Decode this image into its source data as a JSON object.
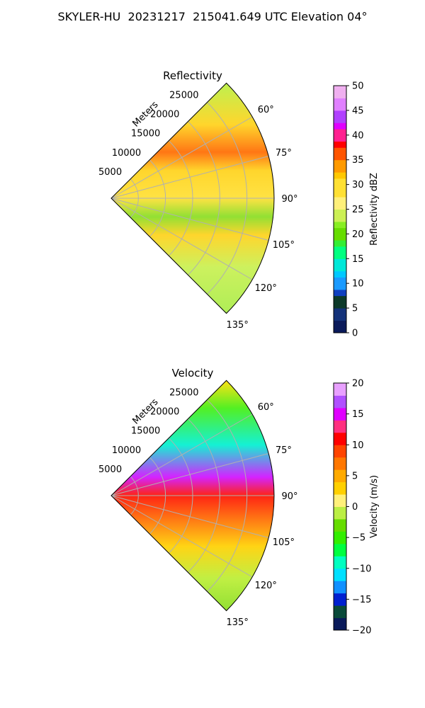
{
  "suptitle": "SKYLER-HU  20231217  215041.649 UTC Elevation 04°",
  "chart_data": [
    {
      "type": "ppi-sector",
      "title": "Reflectivity",
      "range_label": "Meters",
      "range_ticks": [
        "5000",
        "10000",
        "15000",
        "20000",
        "25000"
      ],
      "range_values": [
        5000,
        10000,
        15000,
        20000,
        25000
      ],
      "max_range": 30000,
      "azimuth_ticks": [
        "60°",
        "75°",
        "90°",
        "105°",
        "120°",
        "135°"
      ],
      "azimuth_values": [
        60,
        75,
        90,
        105,
        120,
        135
      ],
      "azimuth_range": [
        45,
        135
      ],
      "colorbar": {
        "label": "Reflectivity dBZ",
        "vmin": 0,
        "vmax": 50,
        "ticks": [
          "0",
          "5",
          "10",
          "15",
          "20",
          "25",
          "30",
          "35",
          "40",
          "45",
          "50"
        ],
        "tick_values": [
          0,
          5,
          10,
          15,
          20,
          25,
          30,
          35,
          40,
          45,
          50
        ]
      }
    },
    {
      "type": "ppi-sector",
      "title": "Velocity",
      "range_label": "Meters",
      "range_ticks": [
        "5000",
        "10000",
        "15000",
        "20000",
        "25000"
      ],
      "range_values": [
        5000,
        10000,
        15000,
        20000,
        25000
      ],
      "max_range": 30000,
      "azimuth_ticks": [
        "60°",
        "75°",
        "90°",
        "105°",
        "120°",
        "135°"
      ],
      "azimuth_values": [
        60,
        75,
        90,
        105,
        120,
        135
      ],
      "azimuth_range": [
        45,
        135
      ],
      "colorbar": {
        "label": "Velocity (m/s)",
        "vmin": -20,
        "vmax": 20,
        "ticks": [
          "−20",
          "−15",
          "−10",
          "−5",
          "0",
          "5",
          "10",
          "15",
          "20"
        ],
        "tick_values": [
          -20,
          -15,
          -10,
          -5,
          0,
          5,
          10,
          15,
          20
        ]
      }
    }
  ]
}
